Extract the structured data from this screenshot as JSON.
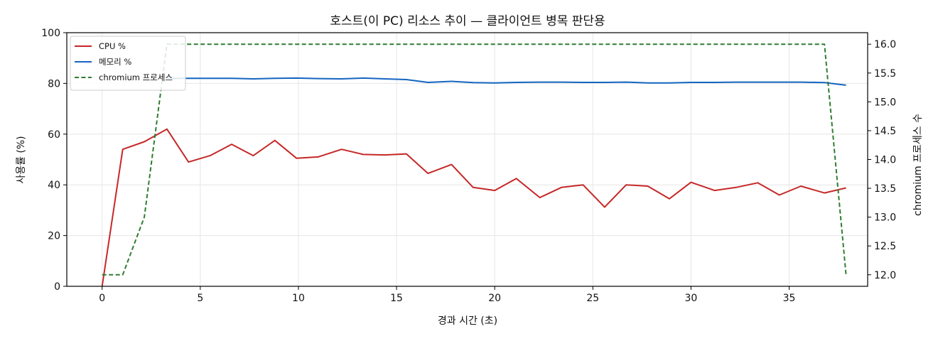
{
  "chart_data": {
    "type": "line",
    "title": "호스트(이 PC) 리소스 추이 — 클라이언트 병목 판단용",
    "xlabel": "경과 시간 (초)",
    "ylabel": "사용률 (%)",
    "y2label": "chromium 프로세스 수",
    "xlim": [
      -1.8,
      39.0
    ],
    "ylim": [
      0,
      100
    ],
    "y2lim": [
      11.8,
      16.2
    ],
    "xticks": [
      0,
      5,
      10,
      15,
      20,
      25,
      30,
      35
    ],
    "yticks": [
      0,
      20,
      40,
      60,
      80,
      100
    ],
    "y2ticks": [
      12.0,
      12.5,
      13.0,
      13.5,
      14.0,
      14.5,
      15.0,
      15.5,
      16.0
    ],
    "y2tick_labels": [
      "12.0",
      "12.5",
      "13.0",
      "13.5",
      "14.0",
      "14.5",
      "15.0",
      "15.5",
      "16.0"
    ],
    "grid": true,
    "legend_position": "top-left",
    "x": [
      0,
      1.05,
      2.15,
      3.3,
      4.4,
      5.5,
      6.6,
      7.7,
      8.8,
      9.9,
      11.0,
      12.2,
      13.3,
      14.4,
      15.5,
      16.6,
      17.8,
      18.9,
      20.0,
      21.1,
      22.3,
      23.4,
      24.5,
      25.6,
      26.7,
      27.8,
      28.9,
      30.0,
      31.2,
      32.3,
      33.4,
      34.5,
      35.6,
      36.8,
      37.9
    ],
    "series": [
      {
        "name": "CPU %",
        "axis": "left",
        "color": "#c62828",
        "style": "solid",
        "values": [
          0,
          54,
          57,
          62,
          49,
          51.5,
          56,
          51.5,
          57.5,
          50.5,
          51,
          54,
          52,
          51.8,
          52.2,
          44.5,
          48,
          39,
          37.8,
          42.5,
          35,
          39,
          40,
          31.2,
          40,
          39.5,
          34.5,
          41,
          37.8,
          39,
          40.8,
          36,
          39.5,
          36.8,
          38.8
        ]
      },
      {
        "name": "메모리 %",
        "axis": "left",
        "color": "#1565c0",
        "style": "solid",
        "values": [
          null,
          null,
          null,
          82,
          82,
          82,
          82,
          81.8,
          82,
          82.1,
          81.9,
          81.8,
          82.1,
          81.8,
          81.5,
          80.4,
          80.8,
          80.3,
          80.2,
          80.4,
          80.5,
          80.5,
          80.4,
          80.4,
          80.5,
          80.2,
          80.2,
          80.4,
          80.4,
          80.5,
          80.5,
          80.5,
          80.5,
          80.3,
          79.3
        ]
      },
      {
        "name": "chromium 프로세스",
        "axis": "right",
        "color": "#2e7d32",
        "style": "dashed",
        "values": [
          12,
          12,
          13,
          16,
          16,
          16,
          16,
          16,
          16,
          16,
          16,
          16,
          16,
          16,
          16,
          16,
          16,
          16,
          16,
          16,
          16,
          16,
          16,
          16,
          16,
          16,
          16,
          16,
          16,
          16,
          16,
          16,
          16,
          16,
          12
        ]
      }
    ]
  }
}
